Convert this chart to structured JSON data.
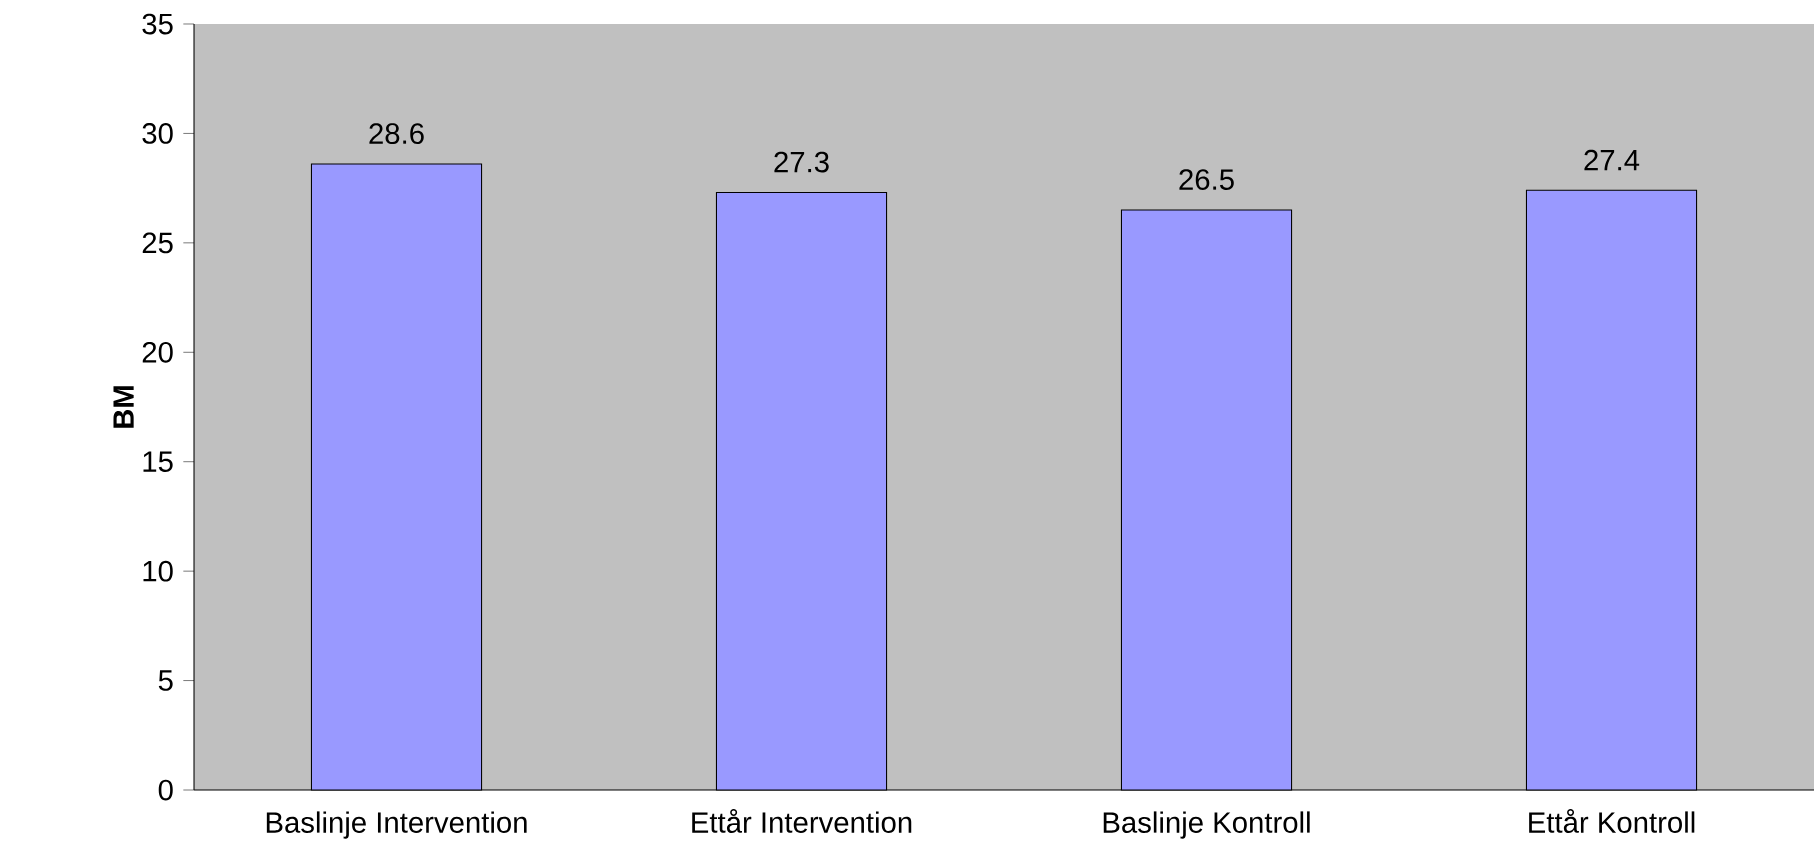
{
  "chart_data": {
    "type": "bar",
    "ylabel": "BM",
    "categories": [
      "Baslinje Intervention",
      "Ettår Intervention",
      "Baslinje Kontroll",
      "Ettår Kontroll"
    ],
    "values": [
      28.6,
      27.3,
      26.5,
      27.4
    ],
    "color": "#9999ff",
    "ylim": [
      0,
      35
    ],
    "yticks": [
      0,
      5,
      10,
      15,
      20,
      25,
      30,
      35
    ],
    "data_labels": true,
    "grid": false
  }
}
